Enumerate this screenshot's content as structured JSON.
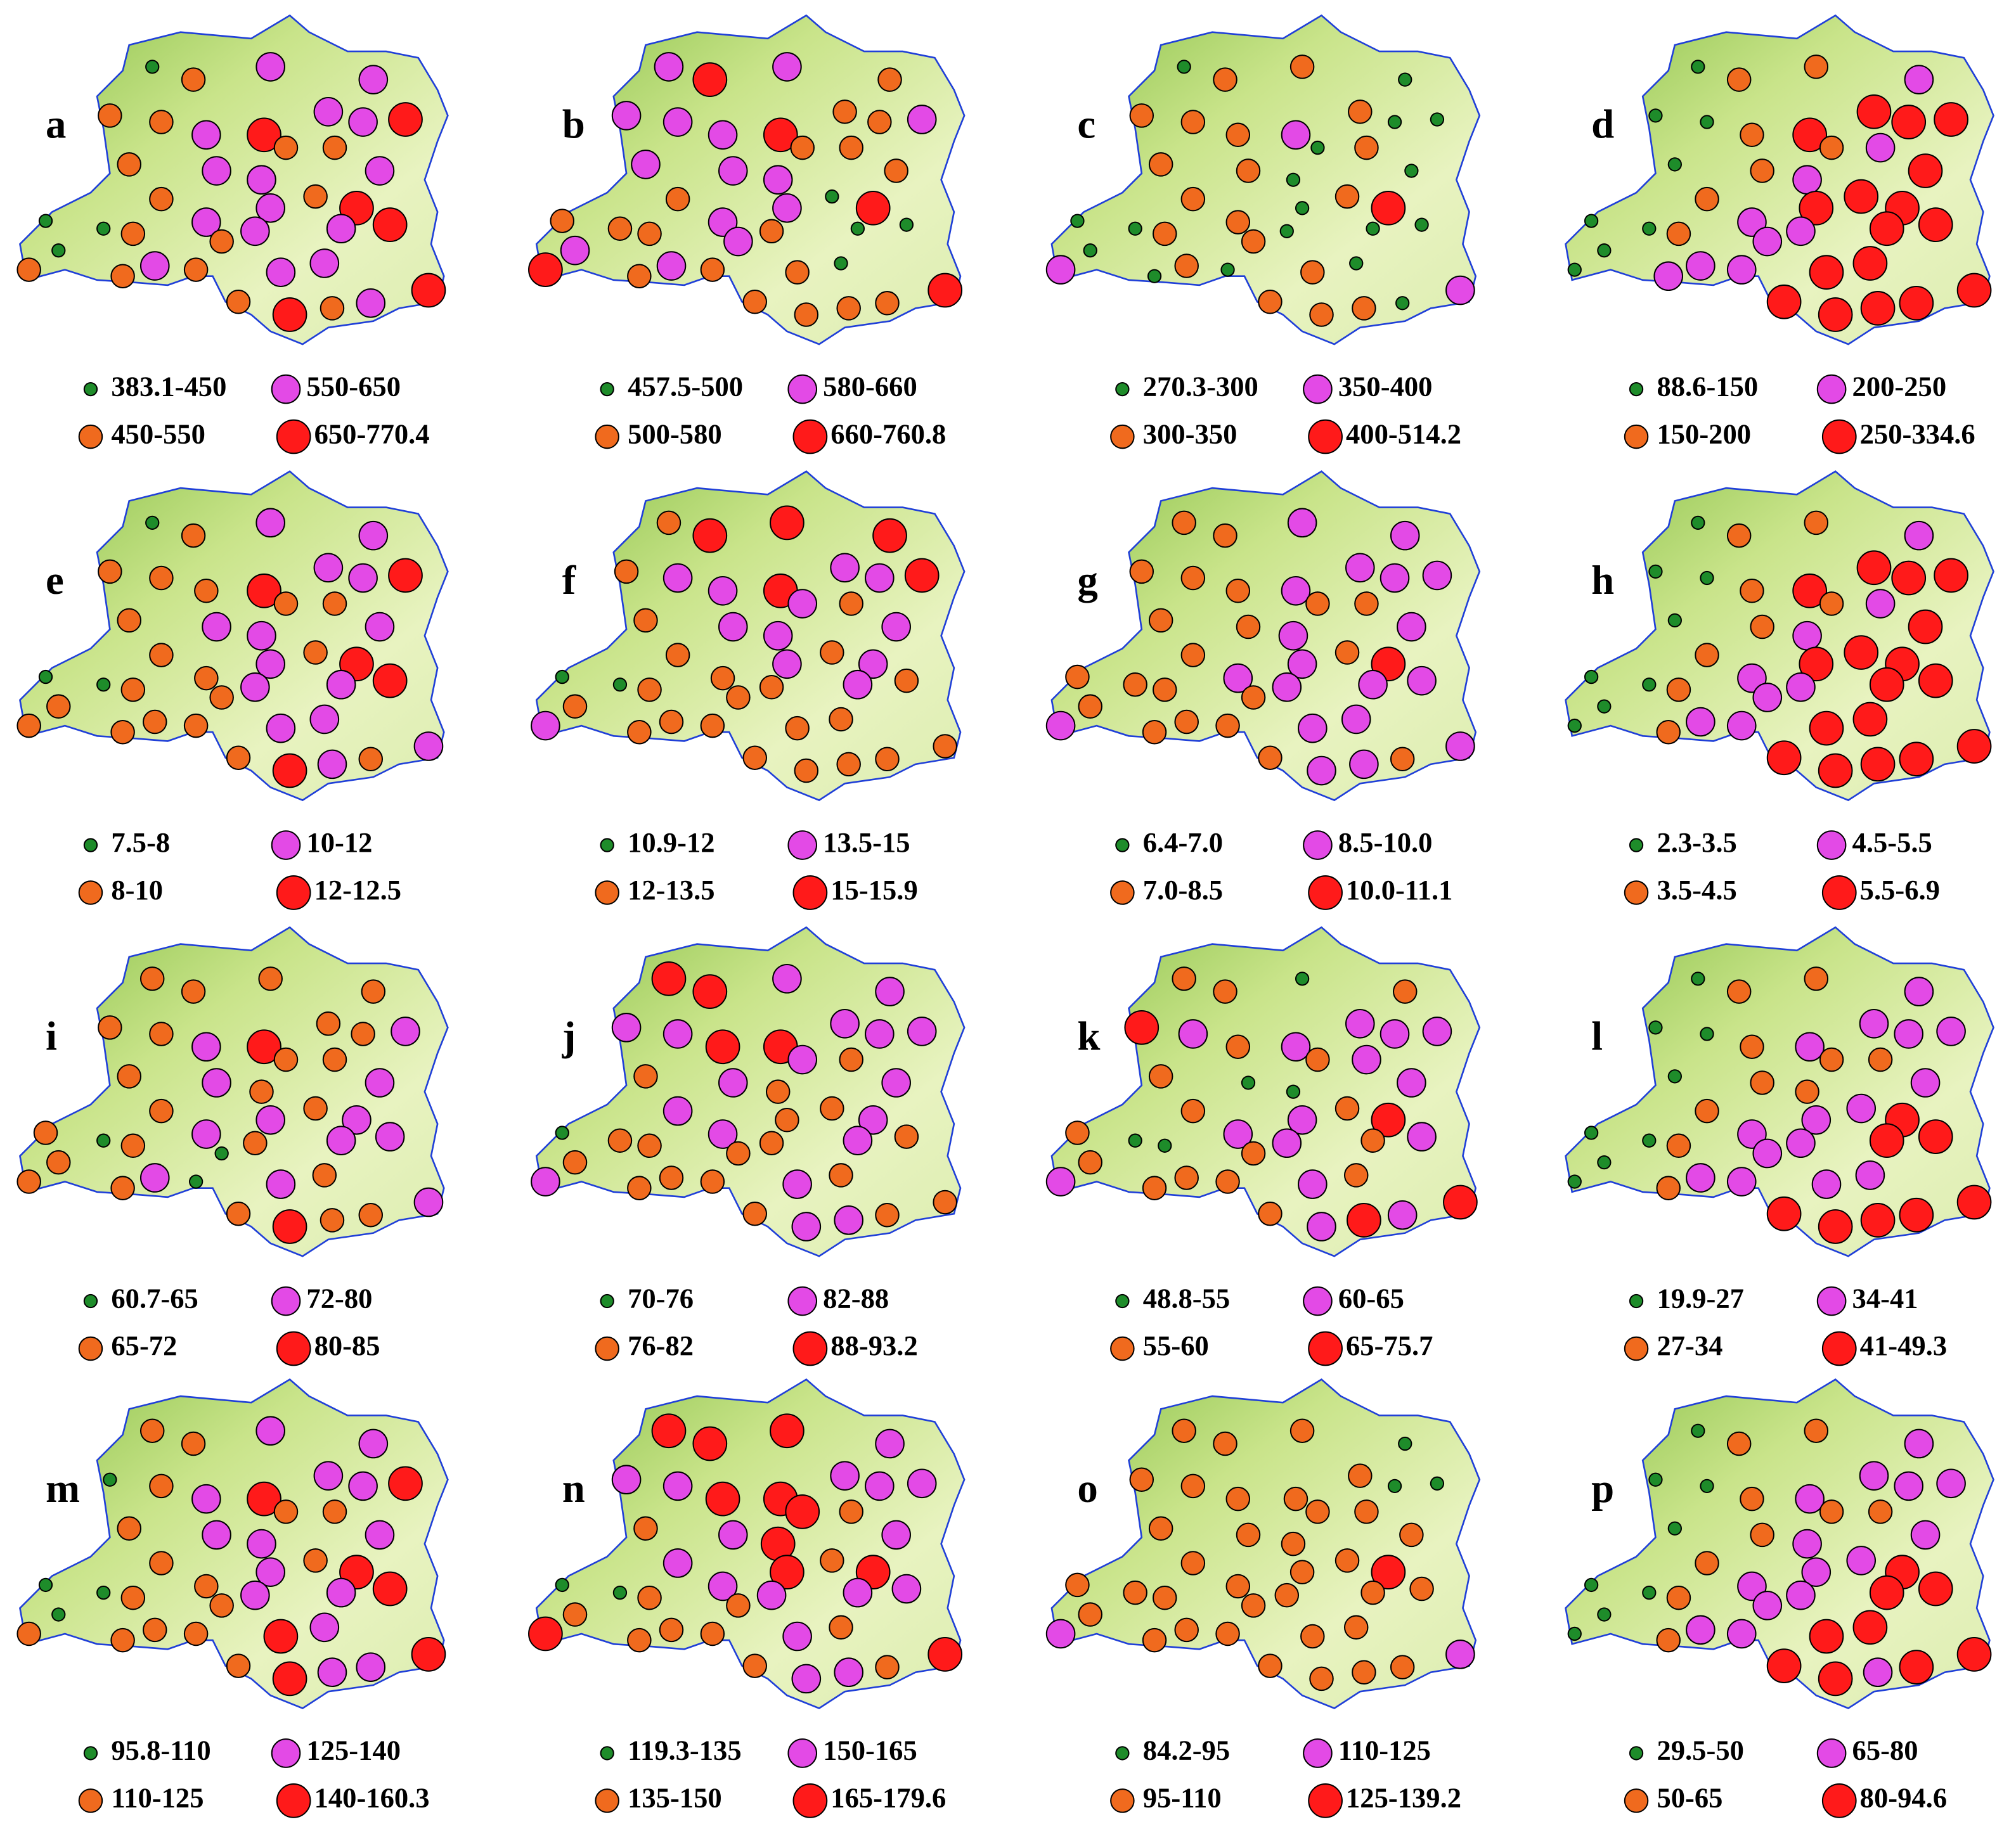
{
  "panels": [
    {
      "label": "a",
      "legend": [
        "383.1-450",
        "450-550",
        "550-650",
        "650-770.4"
      ],
      "stations": [
        0,
        1,
        2,
        2,
        1,
        1,
        2,
        3,
        2,
        2,
        3,
        1,
        2,
        1,
        1,
        2,
        1,
        2,
        1,
        2,
        3,
        0,
        0,
        1,
        2,
        2,
        2,
        3,
        0,
        1,
        1,
        1,
        2,
        1,
        2,
        2,
        3,
        1,
        3,
        1,
        2
      ]
    },
    {
      "label": "b",
      "legend": [
        "457.5-500",
        "500-580",
        "580-660",
        "660-760.8"
      ],
      "stations": [
        2,
        3,
        2,
        1,
        2,
        2,
        2,
        3,
        1,
        1,
        2,
        2,
        2,
        1,
        1,
        1,
        1,
        2,
        0,
        2,
        3,
        1,
        1,
        1,
        2,
        1,
        0,
        0,
        2,
        2,
        3,
        1,
        2,
        1,
        1,
        0,
        3,
        1,
        1,
        1,
        1
      ]
    },
    {
      "label": "c",
      "legend": [
        "270.3-300",
        "300-350",
        "350-400",
        "400-514.2"
      ],
      "stations": [
        0,
        1,
        1,
        0,
        1,
        1,
        1,
        2,
        1,
        0,
        0,
        1,
        1,
        0,
        1,
        0,
        1,
        0,
        1,
        0,
        3,
        0,
        0,
        1,
        1,
        0,
        0,
        0,
        0,
        1,
        2,
        0,
        1,
        0,
        1,
        0,
        2,
        1,
        1,
        1,
        0
      ]
    },
    {
      "label": "d",
      "legend": [
        "88.6-150",
        "150-200",
        "200-250",
        "250-334.6"
      ],
      "stations": [
        0,
        1,
        1,
        2,
        0,
        0,
        1,
        3,
        3,
        3,
        3,
        0,
        1,
        1,
        2,
        3,
        1,
        2,
        3,
        3,
        3,
        0,
        0,
        1,
        2,
        2,
        3,
        3,
        0,
        2,
        0,
        2,
        2,
        2,
        3,
        3,
        3,
        3,
        3,
        3,
        3
      ]
    },
    {
      "label": "e",
      "legend": [
        "7.5-8",
        "8-10",
        "10-12",
        "12-12.5"
      ],
      "stations": [
        0,
        1,
        2,
        2,
        1,
        1,
        1,
        3,
        2,
        2,
        3,
        1,
        2,
        1,
        1,
        2,
        1,
        2,
        1,
        2,
        3,
        0,
        0,
        1,
        1,
        2,
        2,
        3,
        1,
        1,
        1,
        1,
        1,
        1,
        2,
        2,
        2,
        1,
        3,
        2,
        1
      ]
    },
    {
      "label": "f",
      "legend": [
        "10.9-12",
        "12-13.5",
        "13.5-15",
        "15-15.9"
      ],
      "stations": [
        1,
        3,
        3,
        3,
        1,
        2,
        2,
        3,
        2,
        2,
        3,
        1,
        2,
        2,
        1,
        2,
        1,
        2,
        1,
        2,
        2,
        0,
        0,
        1,
        1,
        1,
        2,
        1,
        1,
        1,
        2,
        1,
        1,
        1,
        1,
        1,
        1,
        1,
        1,
        1,
        1
      ]
    },
    {
      "label": "g",
      "legend": [
        "6.4-7.0",
        "7.0-8.5",
        "8.5-10.0",
        "10.0-11.1"
      ],
      "stations": [
        1,
        1,
        2,
        2,
        1,
        1,
        1,
        2,
        2,
        2,
        2,
        1,
        1,
        1,
        1,
        2,
        1,
        2,
        1,
        2,
        3,
        1,
        1,
        1,
        2,
        2,
        2,
        2,
        1,
        1,
        2,
        1,
        1,
        1,
        2,
        2,
        2,
        1,
        2,
        2,
        1
      ]
    },
    {
      "label": "h",
      "legend": [
        "2.3-3.5",
        "3.5-4.5",
        "4.5-5.5",
        "5.5-6.9"
      ],
      "stations": [
        0,
        1,
        1,
        2,
        0,
        0,
        1,
        3,
        3,
        3,
        3,
        0,
        1,
        1,
        2,
        3,
        1,
        2,
        3,
        3,
        3,
        0,
        0,
        1,
        2,
        2,
        3,
        3,
        0,
        2,
        0,
        1,
        2,
        2,
        3,
        3,
        3,
        3,
        3,
        3,
        3
      ]
    },
    {
      "label": "i",
      "legend": [
        "60.7-65",
        "65-72",
        "72-80",
        "80-85"
      ],
      "stations": [
        1,
        1,
        1,
        1,
        1,
        1,
        2,
        3,
        1,
        1,
        2,
        1,
        2,
        1,
        1,
        2,
        1,
        1,
        1,
        2,
        2,
        1,
        0,
        1,
        2,
        1,
        2,
        2,
        1,
        0,
        1,
        1,
        2,
        0,
        2,
        1,
        2,
        1,
        3,
        1,
        1
      ]
    },
    {
      "label": "j",
      "legend": [
        "70-76",
        "76-82",
        "82-88",
        "88-93.2"
      ],
      "stations": [
        3,
        3,
        2,
        2,
        2,
        2,
        3,
        3,
        2,
        2,
        2,
        1,
        2,
        2,
        1,
        2,
        2,
        1,
        1,
        1,
        2,
        0,
        1,
        1,
        2,
        1,
        2,
        1,
        1,
        1,
        2,
        1,
        1,
        1,
        2,
        1,
        1,
        1,
        2,
        2,
        1
      ]
    },
    {
      "label": "k",
      "legend": [
        "48.8-55",
        "55-60",
        "60-65",
        "65-75.7"
      ],
      "stations": [
        1,
        1,
        0,
        1,
        3,
        2,
        1,
        2,
        2,
        2,
        2,
        1,
        0,
        1,
        2,
        2,
        1,
        0,
        1,
        2,
        3,
        1,
        0,
        0,
        2,
        2,
        1,
        2,
        1,
        1,
        2,
        1,
        1,
        1,
        2,
        1,
        3,
        1,
        2,
        3,
        2
      ]
    },
    {
      "label": "l",
      "legend": [
        "19.9-27",
        "27-34",
        "34-41",
        "41-49.3"
      ],
      "stations": [
        0,
        1,
        1,
        2,
        0,
        0,
        1,
        2,
        2,
        2,
        2,
        0,
        1,
        1,
        1,
        2,
        1,
        1,
        2,
        2,
        3,
        0,
        0,
        1,
        2,
        2,
        3,
        3,
        0,
        2,
        0,
        1,
        2,
        2,
        2,
        2,
        3,
        3,
        3,
        3,
        3
      ]
    },
    {
      "label": "m",
      "legend": [
        "95.8-110",
        "110-125",
        "125-140",
        "140-160.3"
      ],
      "stations": [
        1,
        1,
        2,
        2,
        0,
        1,
        2,
        3,
        2,
        2,
        3,
        1,
        2,
        1,
        1,
        2,
        1,
        2,
        1,
        2,
        3,
        0,
        0,
        1,
        1,
        2,
        2,
        3,
        0,
        1,
        1,
        1,
        1,
        1,
        3,
        2,
        3,
        1,
        3,
        2,
        2
      ]
    },
    {
      "label": "n",
      "legend": [
        "119.3-135",
        "135-150",
        "150-165",
        "165-179.6"
      ],
      "stations": [
        3,
        3,
        3,
        2,
        2,
        2,
        3,
        3,
        2,
        2,
        2,
        1,
        2,
        3,
        1,
        2,
        2,
        3,
        1,
        3,
        3,
        0,
        0,
        1,
        2,
        2,
        2,
        2,
        1,
        1,
        3,
        1,
        1,
        1,
        2,
        1,
        3,
        1,
        2,
        2,
        1
      ]
    },
    {
      "label": "o",
      "legend": [
        "84.2-95",
        "95-110",
        "110-125",
        "125-139.2"
      ],
      "stations": [
        1,
        1,
        1,
        0,
        1,
        1,
        1,
        1,
        1,
        0,
        0,
        1,
        1,
        1,
        1,
        1,
        1,
        1,
        1,
        1,
        3,
        1,
        1,
        1,
        1,
        1,
        1,
        1,
        1,
        1,
        2,
        1,
        1,
        1,
        1,
        1,
        2,
        1,
        1,
        1,
        1
      ]
    },
    {
      "label": "p",
      "legend": [
        "29.5-50",
        "50-65",
        "65-80",
        "80-94.6"
      ],
      "stations": [
        0,
        1,
        1,
        2,
        0,
        0,
        1,
        2,
        2,
        2,
        2,
        0,
        1,
        1,
        1,
        2,
        1,
        2,
        2,
        2,
        3,
        0,
        0,
        1,
        2,
        2,
        3,
        3,
        0,
        2,
        0,
        1,
        2,
        2,
        3,
        3,
        3,
        3,
        3,
        2,
        3
      ]
    }
  ]
}
